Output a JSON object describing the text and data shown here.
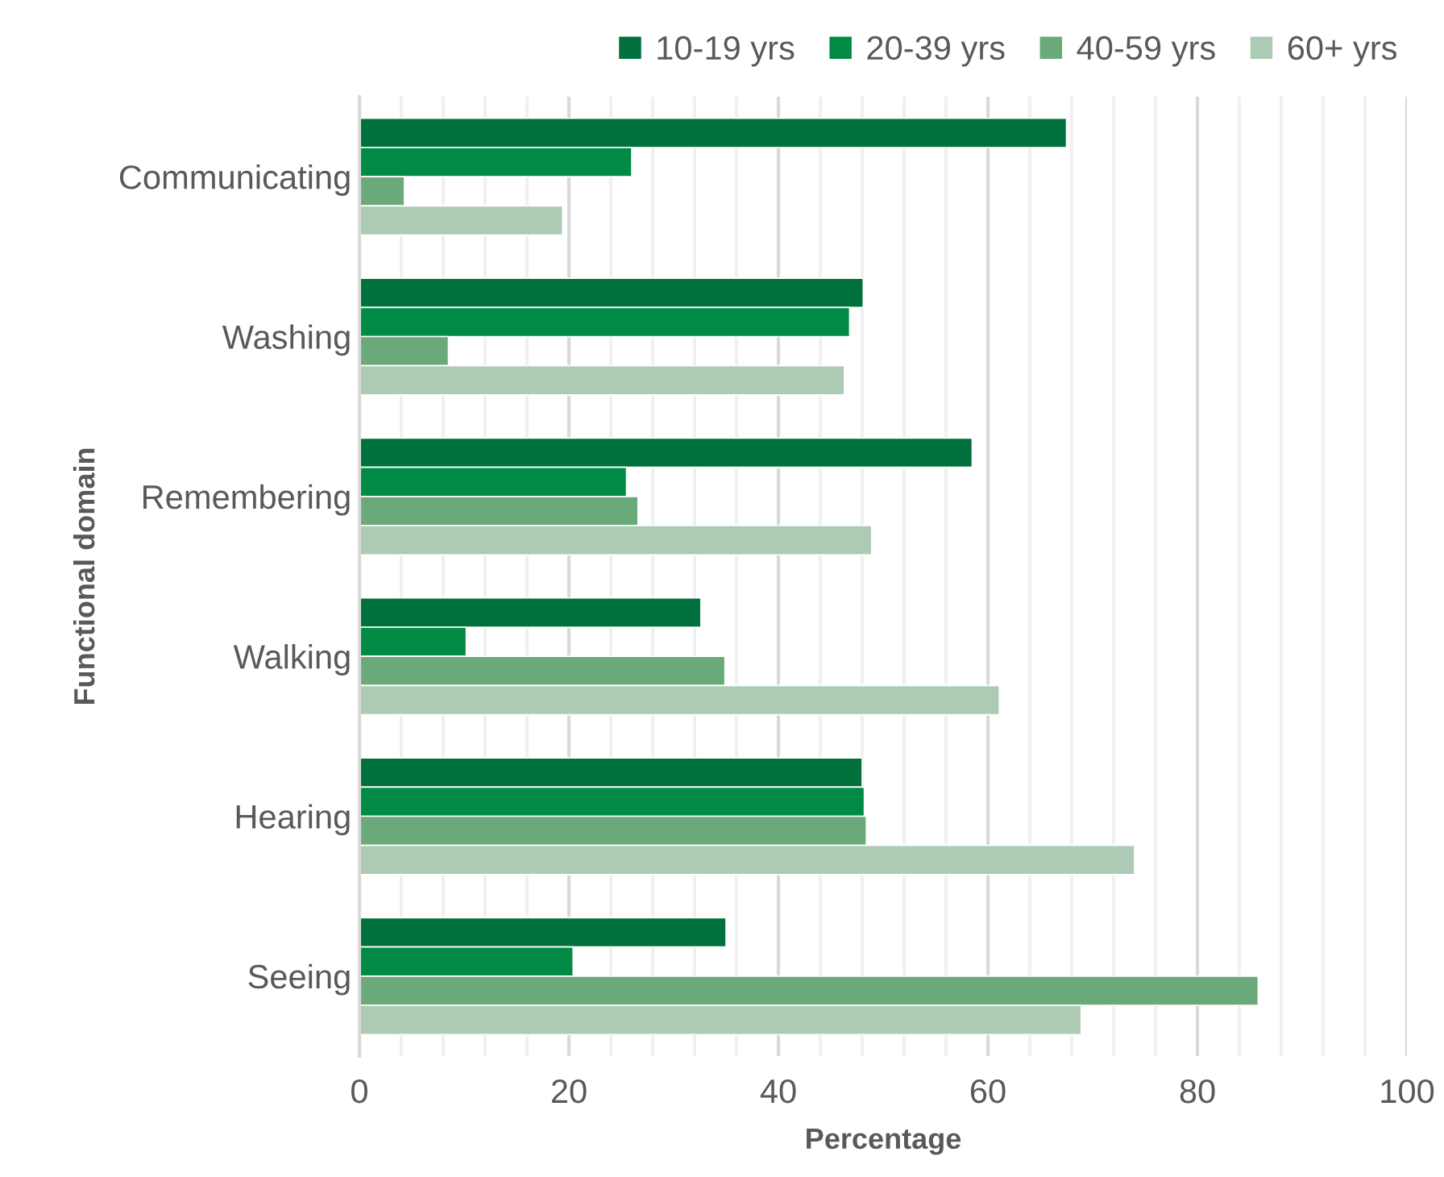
{
  "chart_data": {
    "type": "bar",
    "orientation": "horizontal",
    "xlabel": "Percentage",
    "ylabel": "Functional domain",
    "categories": [
      "Communicating",
      "Washing",
      "Remembering",
      "Walking",
      "Hearing",
      "Seeing"
    ],
    "series": [
      {
        "name": "10-19 yrs",
        "color": "#00703c",
        "values": [
          67.5,
          48.1,
          58.5,
          32.6,
          48.0,
          35.0
        ]
      },
      {
        "name": "20-39 yrs",
        "color": "#008a44",
        "values": [
          26.0,
          46.8,
          25.5,
          10.2,
          48.2,
          20.4
        ]
      },
      {
        "name": "40-59 yrs",
        "color": "#6aaa7a",
        "values": [
          4.3,
          8.5,
          26.6,
          34.9,
          48.4,
          85.8
        ]
      },
      {
        "name": "60+ yrs",
        "color": "#adcbb4",
        "values": [
          19.4,
          46.3,
          48.9,
          61.1,
          74.0,
          68.9
        ]
      }
    ],
    "xlim": [
      0,
      100
    ],
    "xticks": [
      0,
      {
        "value": 4,
        "label": null
      },
      {
        "value": 8,
        "label": null
      },
      {
        "value": 12,
        "label": null
      },
      {
        "value": 16,
        "label": null
      },
      20,
      {
        "value": 24,
        "label": null
      },
      {
        "value": 28,
        "label": null
      },
      {
        "value": 32,
        "label": null
      },
      {
        "value": 36,
        "label": null
      },
      40,
      {
        "value": 44,
        "label": null
      },
      {
        "value": 48,
        "label": null
      },
      {
        "value": 52,
        "label": null
      },
      {
        "value": 56,
        "label": null
      },
      60,
      {
        "value": 64,
        "label": null
      },
      {
        "value": 68,
        "label": null
      },
      {
        "value": 72,
        "label": null
      },
      {
        "value": 76,
        "label": null
      },
      80,
      {
        "value": 84,
        "label": null
      },
      {
        "value": 88,
        "label": null
      },
      {
        "value": 92,
        "label": null
      },
      {
        "value": 96,
        "label": null
      },
      100
    ],
    "grid": "x",
    "legend": "top right"
  }
}
